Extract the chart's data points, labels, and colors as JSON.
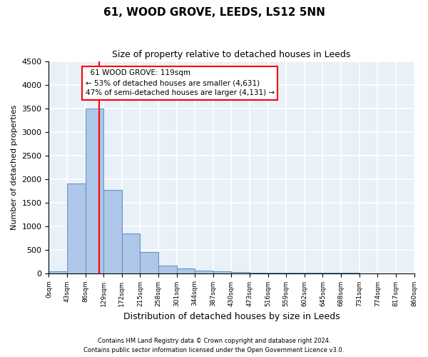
{
  "title": "61, WOOD GROVE, LEEDS, LS12 5NN",
  "subtitle": "Size of property relative to detached houses in Leeds",
  "xlabel": "Distribution of detached houses by size in Leeds",
  "ylabel": "Number of detached properties",
  "annotation_title": "61 WOOD GROVE: 119sqm",
  "annotation_line1": "← 53% of detached houses are smaller (4,631)",
  "annotation_line2": "47% of semi-detached houses are larger (4,131) →",
  "property_size_sqm": 119,
  "bin_width": 43,
  "bins": [
    0,
    43,
    86,
    129,
    172,
    215,
    258,
    301,
    344,
    387,
    430,
    473,
    516,
    559,
    602,
    645,
    688,
    731,
    774,
    817,
    860
  ],
  "counts": [
    35,
    1900,
    3500,
    1760,
    840,
    455,
    165,
    100,
    60,
    35,
    20,
    12,
    8,
    5,
    3,
    2,
    2,
    1,
    1,
    1
  ],
  "bar_color": "#aec6e8",
  "bar_edge_color": "#5a8fc0",
  "vline_color": "red",
  "vline_x": 119,
  "ylim": [
    0,
    4500
  ],
  "yticks": [
    0,
    500,
    1000,
    1500,
    2000,
    2500,
    3000,
    3500,
    4000,
    4500
  ],
  "annotation_box_color": "white",
  "annotation_box_edge": "red",
  "footer1": "Contains HM Land Registry data © Crown copyright and database right 2024.",
  "footer2": "Contains public sector information licensed under the Open Government Licence v3.0.",
  "bg_color": "#e8f0f8",
  "grid_color": "white"
}
